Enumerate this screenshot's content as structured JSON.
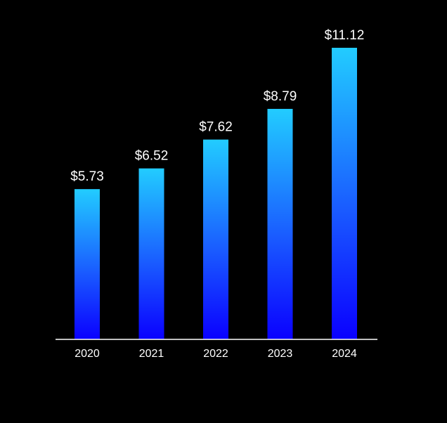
{
  "chart_data": {
    "type": "bar",
    "title": "",
    "xlabel": "",
    "ylabel": "",
    "categories": [
      "2020",
      "2021",
      "2022",
      "2023",
      "2024"
    ],
    "values": [
      5.73,
      6.52,
      7.62,
      8.79,
      11.12
    ],
    "value_labels": [
      "$5.73",
      "$6.52",
      "$7.62",
      "$8.79",
      "$11.12"
    ],
    "ylim": [
      0,
      11.12
    ],
    "grid": false,
    "legend": "none",
    "colors": {
      "background": "#000000",
      "bar_top": "#22ccff",
      "bar_bottom": "#0a00ff",
      "axis": "#ffffff",
      "text": "#ffffff"
    }
  }
}
